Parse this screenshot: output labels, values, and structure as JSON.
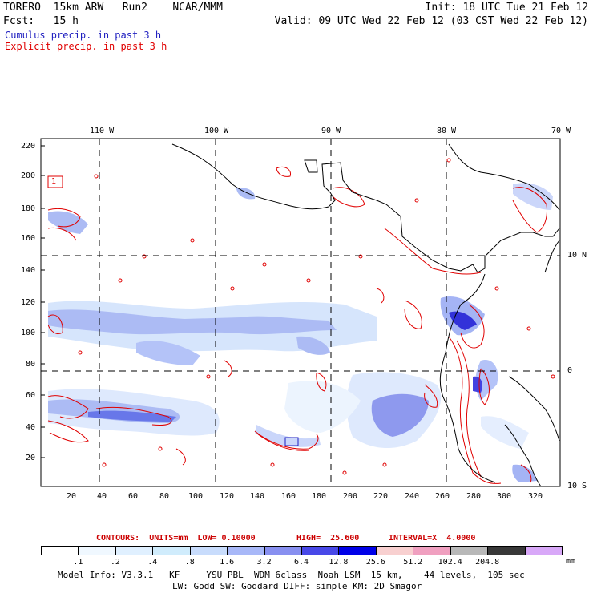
{
  "header": {
    "line1_left": "TORERO  15km ARW   Run2    NCAR/MMM",
    "line1_right": "Init: 18 UTC Tue 21 Feb 12",
    "line2_left": "Fcst:   15 h",
    "line2_right": "Valid: 09 UTC Wed 22 Feb 12 (03 CST Wed 22 Feb 12)",
    "line3": "Cumulus precip. in past 3 h",
    "line4": "Explicit precip. in past 3 h"
  },
  "colors": {
    "cumulus": "#2020c0",
    "explicit": "#e00000",
    "contour": "#dd0000"
  },
  "map": {
    "top_labels": [
      "110 W",
      "100 W",
      "90 W",
      "80 W",
      "70 W"
    ],
    "right_labels": [
      "10 N",
      "0",
      "10 S"
    ],
    "left_ticks": [
      "220",
      "200",
      "180",
      "160",
      "140",
      "120",
      "100",
      "80",
      "60",
      "40",
      "20"
    ],
    "bottom_ticks": [
      "20",
      "40",
      "60",
      "80",
      "100",
      "120",
      "140",
      "160",
      "180",
      "200",
      "220",
      "240",
      "260",
      "280",
      "300",
      "320"
    ],
    "contour_label": "1"
  },
  "contour_info": {
    "units": "CONTOURS:  UNITS=mm  LOW= 0.10000",
    "high": "HIGH=  25.600",
    "interval": "INTERVAL=X  4.0000"
  },
  "colorbar": {
    "labels": [
      ".1",
      ".2",
      ".4",
      ".8",
      "1.6",
      "3.2",
      "6.4",
      "12.8",
      "25.6",
      "51.2",
      "102.4",
      "204.8"
    ],
    "unit": "mm",
    "colors": [
      "#ffffff",
      "#f0f8ff",
      "#e0f0ff",
      "#d0ecfc",
      "#c8dcfc",
      "#a8b8f8",
      "#8890f0",
      "#4848e8",
      "#0000e8",
      "#f8d0d0",
      "#f0a0c0",
      "#b8b8b8",
      "#383838",
      "#d8a8f8"
    ]
  },
  "footer": {
    "line1": "Model Info: V3.3.1   KF     YSU PBL  WDM 6class  Noah LSM  15 km,    44 levels,  105 sec",
    "line2": "LW: Godd SW: Goddard DIFF: simple KM: 2D Smagor"
  }
}
